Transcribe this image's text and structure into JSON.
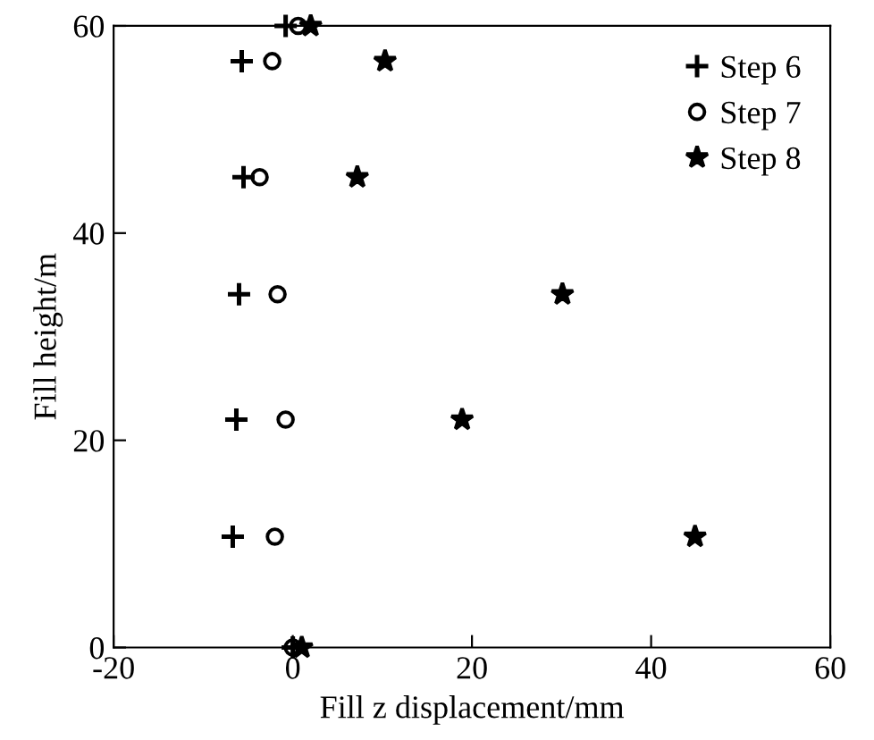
{
  "chart_data": {
    "type": "scatter",
    "xlabel": "Fill z displacement/mm",
    "ylabel": "Fill height/m",
    "xlim": [
      -20,
      60
    ],
    "ylim": [
      0,
      60
    ],
    "xticks": [
      -20,
      0,
      20,
      40,
      60
    ],
    "yticks": [
      0,
      20,
      40,
      60
    ],
    "grid": false,
    "legend": "top right",
    "series": [
      {
        "name": "Step 6",
        "color": "#000000",
        "marker": "cross",
        "x": [
          0,
          -6.7,
          -6.3,
          -6,
          -5.5,
          -5.7,
          -0.8
        ],
        "values": [
          0,
          10.7,
          22,
          34.1,
          45.4,
          56.6,
          60
        ]
      },
      {
        "name": "Step 7",
        "color": "#000000",
        "marker": "circle",
        "x": [
          0,
          -2,
          -0.8,
          -1.7,
          -3.7,
          -2.3,
          0.6
        ],
        "values": [
          0,
          10.7,
          22,
          34.1,
          45.4,
          56.6,
          60
        ]
      },
      {
        "name": "Step 8",
        "color": "#000000",
        "marker": "star",
        "x": [
          1,
          44.9,
          18.9,
          30.1,
          7.2,
          10.3,
          2
        ],
        "values": [
          0,
          10.7,
          22,
          34.1,
          45.4,
          56.6,
          60
        ]
      }
    ]
  }
}
